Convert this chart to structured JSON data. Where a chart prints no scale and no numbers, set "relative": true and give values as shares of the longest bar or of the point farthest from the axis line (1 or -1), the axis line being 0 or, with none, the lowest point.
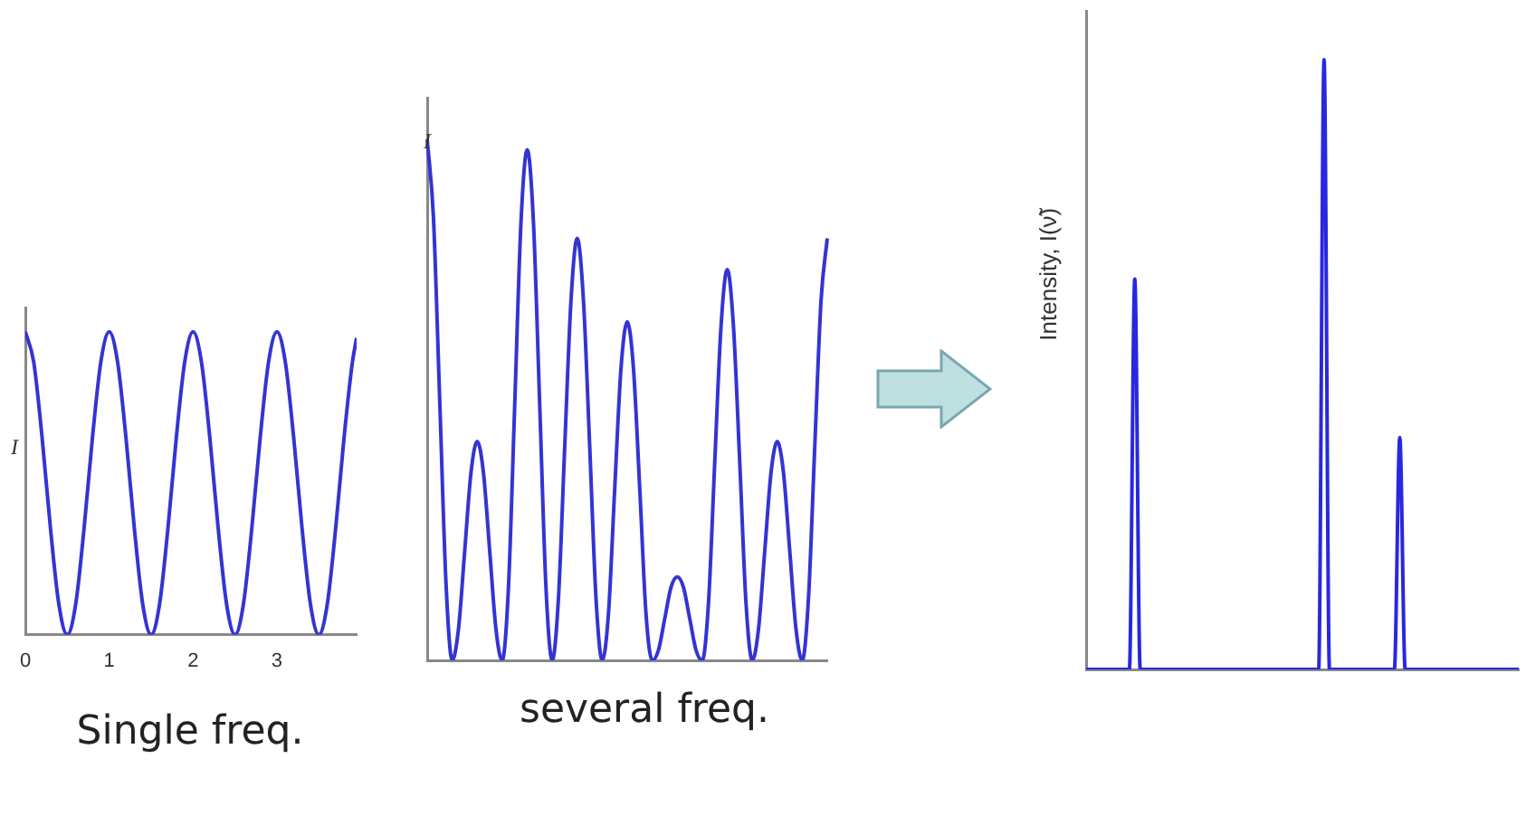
{
  "chart_data": [
    {
      "type": "line",
      "ylabel": "I",
      "annotations": [
        "Single freq."
      ],
      "relative": true,
      "tick_labels": "x",
      "grid": false,
      "legend": false,
      "marker": "none",
      "xlim": [
        0,
        3.95
      ],
      "xticks": [
        0,
        1,
        2,
        3
      ],
      "x": [
        0,
        0.1,
        0.2,
        0.3,
        0.4,
        0.5,
        0.6,
        0.7,
        0.8,
        0.9,
        1,
        1.1,
        1.2,
        1.3,
        1.4,
        1.5,
        1.6,
        1.7,
        1.8,
        1.9,
        2,
        2.1,
        2.2,
        2.3,
        2.4,
        2.5,
        2.6,
        2.7,
        2.8,
        2.9,
        3,
        3.1,
        3.2,
        3.3,
        3.4,
        3.5,
        3.6,
        3.7,
        3.8,
        3.9,
        3.95
      ],
      "series": [
        {
          "color": "#3434d4",
          "values": [
            1,
            0.9,
            0.65,
            0.35,
            0.1,
            0,
            0.1,
            0.35,
            0.65,
            0.9,
            1,
            0.9,
            0.65,
            0.35,
            0.1,
            0,
            0.1,
            0.35,
            0.65,
            0.9,
            1,
            0.9,
            0.65,
            0.35,
            0.1,
            0,
            0.1,
            0.35,
            0.65,
            0.9,
            1,
            0.9,
            0.65,
            0.35,
            0.1,
            0,
            0.1,
            0.35,
            0.65,
            0.9,
            0.98
          ]
        }
      ]
    },
    {
      "type": "line",
      "ylabel": "I",
      "annotations": [
        "several freq."
      ],
      "relative": true,
      "tick_labels": false,
      "grid": false,
      "legend": false,
      "marker": "none",
      "categories": [
        null,
        null,
        null,
        null,
        null,
        null,
        null,
        null,
        null,
        null,
        null,
        null,
        null,
        null,
        null,
        null,
        null,
        null,
        null,
        null,
        null,
        null,
        null,
        null,
        null,
        null,
        null,
        null,
        null,
        null,
        null,
        null,
        null,
        null,
        null,
        null,
        null,
        null,
        null,
        null,
        null,
        null,
        null,
        null,
        null,
        null,
        null,
        null,
        null,
        null,
        null,
        null,
        null,
        null,
        null,
        null,
        null,
        null,
        null,
        null,
        null,
        null,
        null,
        null,
        null
      ],
      "series": [
        {
          "color": "#3434d4",
          "values": [
            1,
            0.85,
            0.5,
            0.15,
            0,
            0.06,
            0.21,
            0.36,
            0.42,
            0.36,
            0.21,
            0.06,
            0,
            0.14,
            0.49,
            0.84,
            0.98,
            0.84,
            0.49,
            0.14,
            0,
            0.12,
            0.41,
            0.69,
            0.81,
            0.69,
            0.41,
            0.12,
            0,
            0.09,
            0.33,
            0.56,
            0.65,
            0.56,
            0.33,
            0.09,
            0,
            0.02,
            0.08,
            0.14,
            0.16,
            0.14,
            0.08,
            0.02,
            0,
            0.11,
            0.38,
            0.64,
            0.75,
            0.64,
            0.38,
            0.11,
            0,
            0.06,
            0.21,
            0.36,
            0.42,
            0.36,
            0.21,
            0.06,
            0,
            0.12,
            0.41,
            0.69,
            0.81
          ]
        }
      ]
    },
    {
      "type": "line",
      "ylabel": "Intensity, I(ν̃)",
      "relative": true,
      "tick_labels": false,
      "grid": false,
      "legend": false,
      "marker": "none",
      "categories": [
        null,
        null,
        null,
        null,
        null,
        null,
        null,
        null,
        null,
        null,
        null,
        null,
        null,
        null,
        null,
        null,
        null,
        null,
        null,
        null,
        null,
        null,
        null,
        null,
        null,
        null,
        null,
        null,
        null,
        null,
        null,
        null,
        null,
        null,
        null,
        null,
        null,
        null,
        null,
        null,
        null,
        null,
        null,
        null,
        null,
        null,
        null,
        null,
        null,
        null,
        null,
        null,
        null,
        null,
        null,
        null,
        null,
        null,
        null,
        null,
        null,
        null,
        null,
        null,
        null,
        null,
        null,
        null,
        null,
        null,
        null,
        null,
        null,
        null,
        null,
        null,
        null,
        null,
        null,
        null,
        null
      ],
      "series": [
        {
          "color": "#2828e0",
          "values": [
            0,
            0,
            0,
            0,
            0,
            0,
            0,
            0,
            0,
            0.64,
            0,
            0,
            0,
            0,
            0,
            0,
            0,
            0,
            0,
            0,
            0,
            0,
            0,
            0,
            0,
            0,
            0,
            0,
            0,
            0,
            0,
            0,
            0,
            0,
            0,
            0,
            0,
            0,
            0,
            0,
            0,
            0,
            0,
            0,
            1,
            0,
            0,
            0,
            0,
            0,
            0,
            0,
            0,
            0,
            0,
            0,
            0,
            0,
            0.38,
            0,
            0,
            0,
            0,
            0,
            0,
            0,
            0,
            0,
            0,
            0,
            0,
            0,
            0,
            0,
            0,
            0,
            0,
            0,
            0,
            0,
            0
          ]
        }
      ]
    }
  ]
}
